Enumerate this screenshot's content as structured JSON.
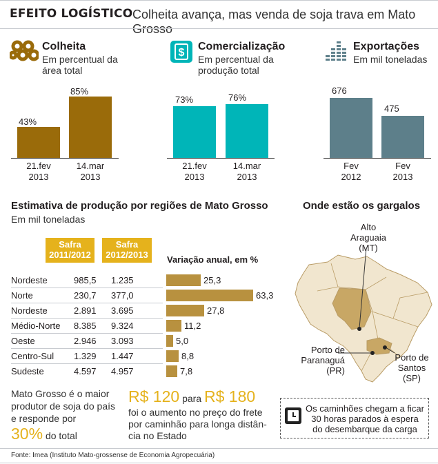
{
  "header": {
    "title": "EFEITO LOGÍSTICO",
    "subtitle": "Colheita avança, mas venda de soja trava em Mato Grosso"
  },
  "colors": {
    "colheita": "#9a6b0a",
    "comercializacao": "#00b5b8",
    "exportacoes": "#5d7f8a",
    "regions": "#b8913f",
    "safra": "#e5b21c",
    "map_land": "#f1e6cf",
    "map_mt": "#c8a765"
  },
  "icons": {
    "colheita": "honeycomb-icon",
    "comercializacao": "dollar-sign-icon",
    "exportacoes": "stacked-bars-icon",
    "clock": "clock-icon"
  },
  "chart_data": [
    {
      "type": "bar",
      "title": "Colheita",
      "subtitle": "Em percentual da área total",
      "categories": [
        [
          "21.fev",
          "2013"
        ],
        [
          "14.mar",
          "2013"
        ]
      ],
      "values": [
        43,
        85
      ],
      "value_labels": [
        "43%",
        "85%"
      ],
      "ylim": [
        0,
        100
      ]
    },
    {
      "type": "bar",
      "title": "Comercialização",
      "subtitle": "Em percentual da produção total",
      "categories": [
        [
          "21.fev",
          "2013"
        ],
        [
          "14.mar",
          "2013"
        ]
      ],
      "values": [
        73,
        76
      ],
      "value_labels": [
        "73%",
        "76%"
      ],
      "ylim": [
        0,
        100
      ]
    },
    {
      "type": "bar",
      "title": "Exportações",
      "subtitle": "Em mil toneladas",
      "categories": [
        [
          "Fev",
          "2012"
        ],
        [
          "Fev",
          "2013"
        ]
      ],
      "values": [
        676,
        475
      ],
      "value_labels": [
        "676",
        "475"
      ],
      "ylim": [
        0,
        800
      ]
    },
    {
      "type": "bar",
      "orientation": "horizontal",
      "title": "Estimativa de produção por regiões de Mato Grosso",
      "subtitle": "Em mil toneladas",
      "columns": [
        "Safra 2011/2012",
        "Safra 2012/2013",
        "Variação anual, em %"
      ],
      "rows": [
        {
          "region": "Nordeste",
          "safra_2011_2012": "985,5",
          "safra_2012_2013": "1.235",
          "variation_label": "25,3",
          "variation": 25.3
        },
        {
          "region": "Norte",
          "safra_2011_2012": "230,7",
          "safra_2012_2013": "377,0",
          "variation_label": "63,3",
          "variation": 63.3
        },
        {
          "region": "Nordeste",
          "safra_2011_2012": "2.891",
          "safra_2012_2013": "3.695",
          "variation_label": "27,8",
          "variation": 27.8
        },
        {
          "region": "Médio-Norte",
          "safra_2011_2012": "8.385",
          "safra_2012_2013": "9.324",
          "variation_label": "11,2",
          "variation": 11.2
        },
        {
          "region": "Oeste",
          "safra_2011_2012": "2.946",
          "safra_2012_2013": "3.093",
          "variation_label": "5,0",
          "variation": 5.0
        },
        {
          "region": "Centro-Sul",
          "safra_2011_2012": "1.329",
          "safra_2012_2013": "1.447",
          "variation_label": "8,8",
          "variation": 8.8
        },
        {
          "region": "Sudeste",
          "safra_2011_2012": "4.597",
          "safra_2012_2013": "4.957",
          "variation_label": "7,8",
          "variation": 7.8
        }
      ],
      "xlim": [
        0,
        63.3
      ]
    }
  ],
  "facts": {
    "mt_text_line1": "Mato Grosso é o maior",
    "mt_text_line2": "produtor de soja do país",
    "mt_text_line3": "e responde por",
    "mt_percent": "30%",
    "mt_total": "do total",
    "freight_from": "R$ 120",
    "freight_para": "para",
    "freight_to": "R$ 180",
    "freight_line1": "foi o aumento no preço do frete",
    "freight_line2": "por caminhão para longa distân-",
    "freight_line3": "cia no Estado"
  },
  "map": {
    "title": "Onde estão os gargalos",
    "alto_line1": "Alto",
    "alto_line2": "Araguaia",
    "alto_line3": "(MT)",
    "paranagua_line1": "Porto de",
    "paranagua_line2": "Paranaguá",
    "paranagua_line3": "(PR)",
    "santos_line1": "Porto de",
    "santos_line2": "Santos",
    "santos_line3": "(SP)",
    "note_line1": "Os caminhões chegam a ficar",
    "note_line2": "30 horas parados à espera",
    "note_line3": "do desembarque da carga"
  },
  "source": "Fonte: Imea (Instituto Mato-grossense de Economia Agropecuária)"
}
